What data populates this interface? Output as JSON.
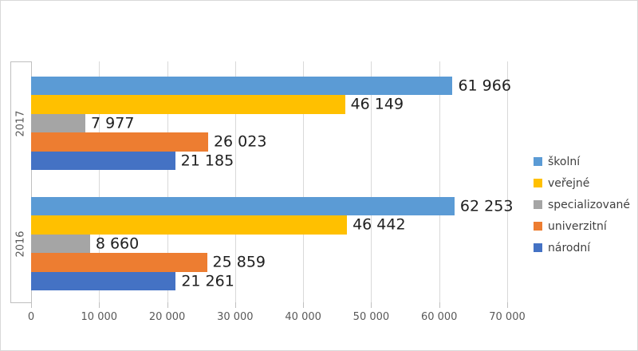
{
  "theme": {
    "background": "#FFFFFF",
    "frame_border_color": "#D9D9D9",
    "gridline_color": "#D9D9D9",
    "axis_line_color": "#BFBFBF",
    "data_label_color": "#202020",
    "tick_label_color": "#595959",
    "legend_text_color": "#404040"
  },
  "chart_data": {
    "type": "bar",
    "orientation": "horizontal",
    "title": "",
    "categories": [
      "2017",
      "2016"
    ],
    "series": [
      {
        "name": "školní",
        "color": "#5B9BD5",
        "values": [
          61966,
          62253
        ],
        "labels": [
          "61 966",
          "62 253"
        ]
      },
      {
        "name": "veřejné",
        "color": "#FFC000",
        "values": [
          46149,
          46442
        ],
        "labels": [
          "46 149",
          "46 442"
        ]
      },
      {
        "name": "specializované",
        "color": "#A5A5A5",
        "values": [
          7977,
          8660
        ],
        "labels": [
          "7 977",
          "8 660"
        ]
      },
      {
        "name": "univerzitní",
        "color": "#ED7D31",
        "values": [
          26023,
          25859
        ],
        "labels": [
          "26 023",
          "25 859"
        ]
      },
      {
        "name": "národní",
        "color": "#4472C4",
        "values": [
          21185,
          21261
        ],
        "labels": [
          "21 185",
          "21 261"
        ]
      }
    ],
    "xlim": [
      0,
      70000
    ],
    "x_tick_values": [
      0,
      10000,
      20000,
      30000,
      40000,
      50000,
      60000,
      70000
    ],
    "x_tick_labels": [
      "0",
      "10 000",
      "20 000",
      "30 000",
      "40 000",
      "50 000",
      "60 000",
      "70 000"
    ],
    "grid": true,
    "data_labels": true,
    "legend_position": "right",
    "legend": [
      "školní",
      "veřejné",
      "specializované",
      "univerzitní",
      "národní"
    ]
  }
}
